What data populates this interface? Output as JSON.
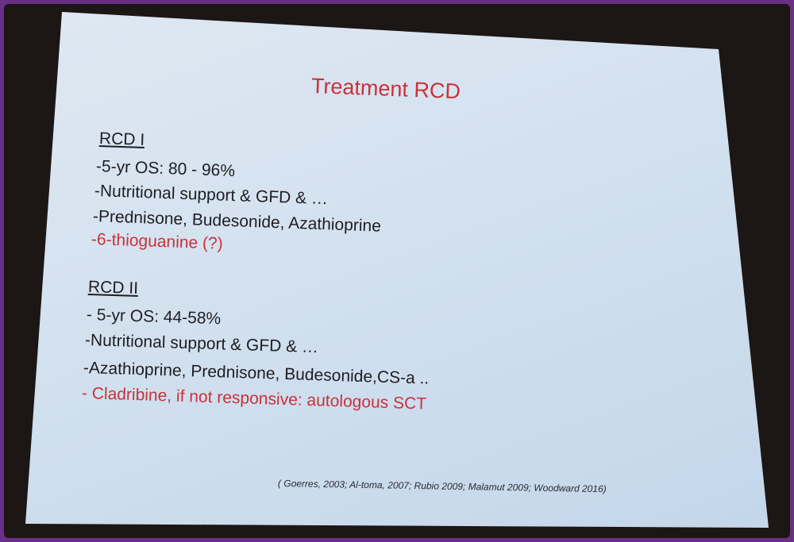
{
  "slide": {
    "title": "Treatment RCD",
    "rcd1": {
      "heading": "RCD I",
      "items": [
        "-5-yr OS: 80 - 96%",
        "-Nutritional support & GFD & …",
        "-Prednisone, Budesonide, Azathioprine"
      ],
      "highlight": "-6-thioguanine (?)"
    },
    "rcd2": {
      "heading": "RCD II",
      "items": [
        "-   5-yr OS: 44-58%",
        "-Nutritional support & GFD & …",
        "-Azathioprine, Prednisone, Budesonide,CS-a .."
      ],
      "highlight": "-    Cladribine, if not responsive: autologous SCT"
    },
    "citation": "( Goerres, 2003; Al-toma, 2007; Rubio 2009; Malamut 2009; Woodward 2016)"
  },
  "colors": {
    "accent_red": "#c8323a",
    "frame": "#6a2f86"
  }
}
